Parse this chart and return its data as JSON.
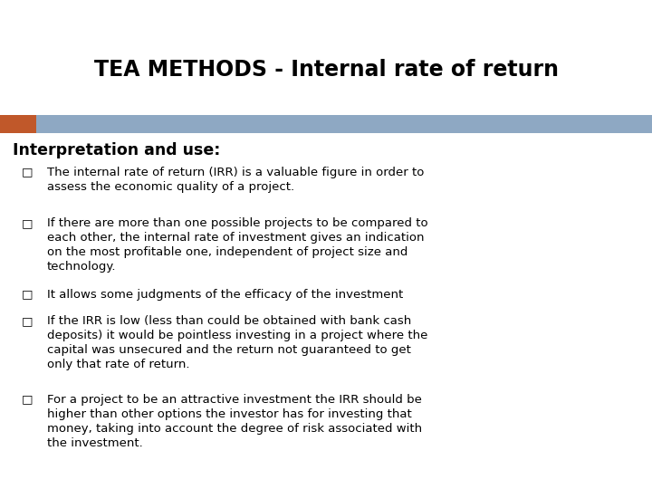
{
  "title": "TEA METHODS - Internal rate of return",
  "header_section": "Interpretation and use:",
  "bullet_points": [
    "The internal rate of return (IRR) is a valuable figure in order to\nassess the economic quality of a project.",
    "If there are more than one possible projects to be compared to\neach other, the internal rate of investment gives an indication\non the most profitable one, independent of project size and\ntechnology.",
    "It allows some judgments of the efficacy of the investment",
    "If the IRR is low (less than could be obtained with bank cash\ndeposits) it would be pointless investing in a project where the\ncapital was unsecured and the return not guaranteed to get\nonly that rate of return.",
    "For a project to be an attractive investment the IRR should be\nhigher than other options the investor has for investing that\nmoney, taking into account the degree of risk associated with\nthe investment."
  ],
  "bg_color": "#ffffff",
  "title_color": "#000000",
  "header_color": "#000000",
  "bullet_color": "#000000",
  "bar_orange_color": "#c0582a",
  "bar_blue_color": "#8ea8c3",
  "title_fontsize": 17,
  "header_fontsize": 12.5,
  "bullet_fontsize": 9.5,
  "fig_width": 7.2,
  "fig_height": 5.4,
  "dpi": 100
}
